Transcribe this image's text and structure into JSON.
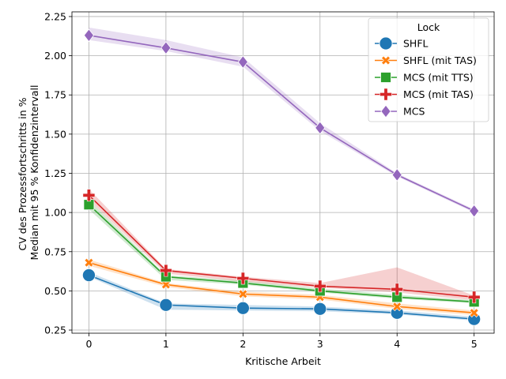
{
  "chart_data": {
    "type": "line",
    "x": [
      0,
      1,
      2,
      3,
      4,
      5
    ],
    "xticks": [
      "0",
      "1",
      "2",
      "3",
      "4",
      "5"
    ],
    "yticks": [
      "0.25",
      "0.50",
      "0.75",
      "1.00",
      "1.25",
      "1.50",
      "1.75",
      "2.00",
      "2.25"
    ],
    "xlabel": "Kritische Arbeit",
    "ylabel_lines": [
      "CV des Prozessfortschritts in %",
      "Median mit 95 % Konfidenzintervall"
    ],
    "xlim": [
      -0.22,
      5.26
    ],
    "ylim": [
      0.23,
      2.28
    ],
    "grid": true,
    "legend": {
      "title": "Lock",
      "position": "top-right"
    },
    "series": [
      {
        "name": "SHFL",
        "color": "#1f77b4",
        "marker": "circle",
        "values": [
          0.6,
          0.41,
          0.39,
          0.385,
          0.36,
          0.32
        ],
        "ci_low": [
          0.59,
          0.38,
          0.375,
          0.37,
          0.35,
          0.31
        ],
        "ci_high": [
          0.62,
          0.42,
          0.41,
          0.4,
          0.375,
          0.335
        ]
      },
      {
        "name": "SHFL (mit TAS)",
        "color": "#ff7f0e",
        "marker": "x",
        "values": [
          0.68,
          0.54,
          0.48,
          0.46,
          0.4,
          0.36
        ],
        "ci_low": [
          0.66,
          0.525,
          0.465,
          0.445,
          0.385,
          0.345
        ],
        "ci_high": [
          0.7,
          0.55,
          0.495,
          0.475,
          0.42,
          0.375
        ]
      },
      {
        "name": "MCS (mit TTS)",
        "color": "#2ca02c",
        "marker": "square",
        "values": [
          1.05,
          0.59,
          0.55,
          0.5,
          0.46,
          0.43
        ],
        "ci_low": [
          1.02,
          0.57,
          0.54,
          0.49,
          0.45,
          0.42
        ],
        "ci_high": [
          1.08,
          0.6,
          0.565,
          0.515,
          0.475,
          0.44
        ]
      },
      {
        "name": "MCS (mit TAS)",
        "color": "#d62728",
        "marker": "plus",
        "values": [
          1.11,
          0.63,
          0.58,
          0.53,
          0.51,
          0.46
        ],
        "ci_low": [
          1.08,
          0.61,
          0.56,
          0.52,
          0.49,
          0.44
        ],
        "ci_high": [
          1.15,
          0.64,
          0.59,
          0.55,
          0.65,
          0.47
        ]
      },
      {
        "name": "MCS",
        "color": "#9467bd",
        "marker": "diamond",
        "values": [
          2.13,
          2.05,
          1.96,
          1.54,
          1.24,
          1.01
        ],
        "ci_low": [
          2.1,
          2.03,
          1.93,
          1.52,
          1.23,
          1.0
        ],
        "ci_high": [
          2.18,
          2.1,
          1.99,
          1.57,
          1.25,
          1.02
        ]
      }
    ]
  }
}
